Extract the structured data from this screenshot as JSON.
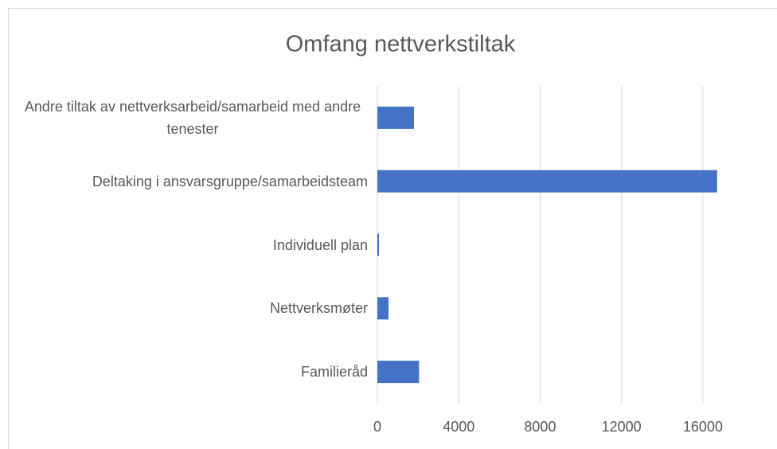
{
  "chart_data": {
    "type": "barh",
    "title": "Omfang nettverkstiltak",
    "categories": [
      "Andre tiltak av nettverksarbeid/samarbeid med andre tenester",
      "Deltaking i ansvarsgruppe/samarbeidsteam",
      "Individuell plan",
      "Nettverksmøter",
      "Familieråd"
    ],
    "values": [
      1800,
      16700,
      80,
      550,
      2050
    ],
    "color": "#4472c4",
    "xlim": [
      0,
      18000
    ],
    "xticks": [
      0,
      4000,
      8000,
      12000,
      16000
    ],
    "grid": true
  }
}
